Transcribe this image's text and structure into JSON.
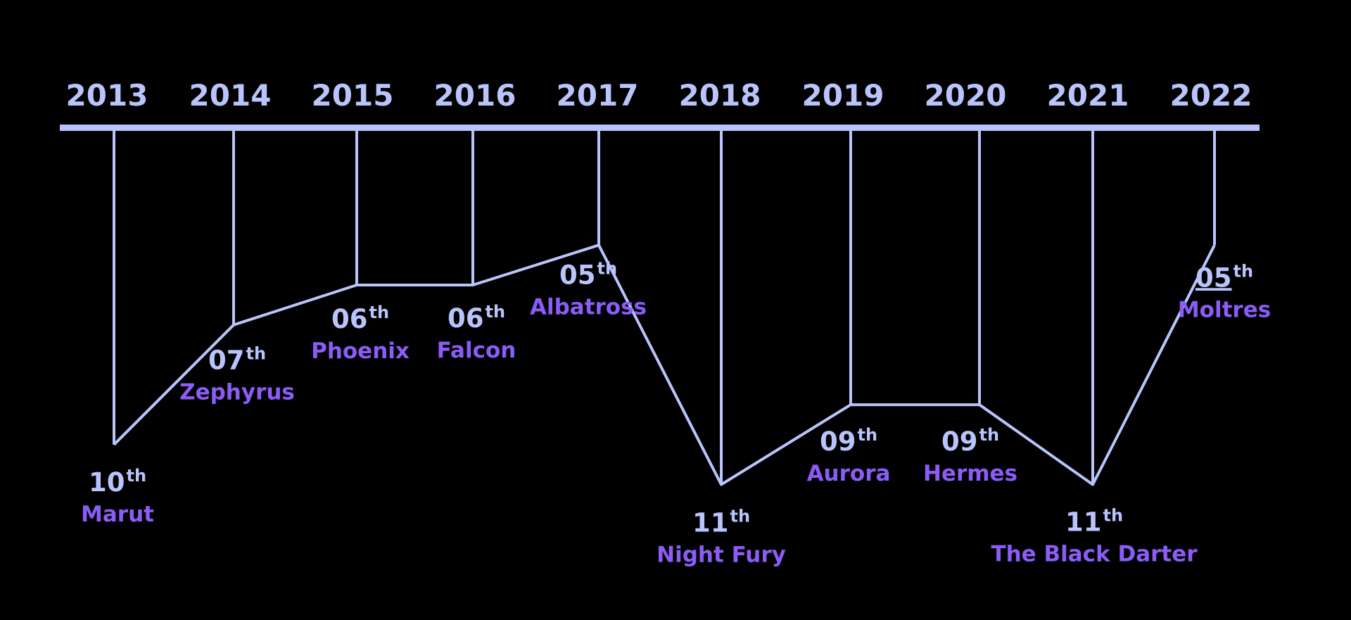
{
  "colors": {
    "background": "#000000",
    "line": "#b8c4fb",
    "year_text": "#b8c4fb",
    "rank_text": "#b8c4fb",
    "name_text": "#8b5cf6"
  },
  "chart_data": {
    "type": "line",
    "title": "",
    "xlabel": "",
    "ylabel": "",
    "x": [
      "2013",
      "2014",
      "2015",
      "2016",
      "2017",
      "2018",
      "2019",
      "2020",
      "2021",
      "2022"
    ],
    "series": [
      {
        "values": [
          10,
          7,
          6,
          6,
          5,
          11,
          9,
          9,
          11,
          5
        ],
        "rank_labels": [
          "10",
          "07",
          "06",
          "06",
          "05",
          "11",
          "09",
          "09",
          "11",
          "05"
        ],
        "rank_suffix": "th",
        "names": [
          "Marut",
          "Zephyrus",
          "Phoenix",
          "Falcon",
          "Albatross",
          "Night Fury",
          "Aurora",
          "Hermes",
          "The Black Darter",
          "Moltres"
        ]
      }
    ],
    "y_axis": "rank, inverted (lower rank drawn higher)",
    "ylim": [
      1,
      12
    ],
    "grid": false,
    "legend": "none"
  }
}
